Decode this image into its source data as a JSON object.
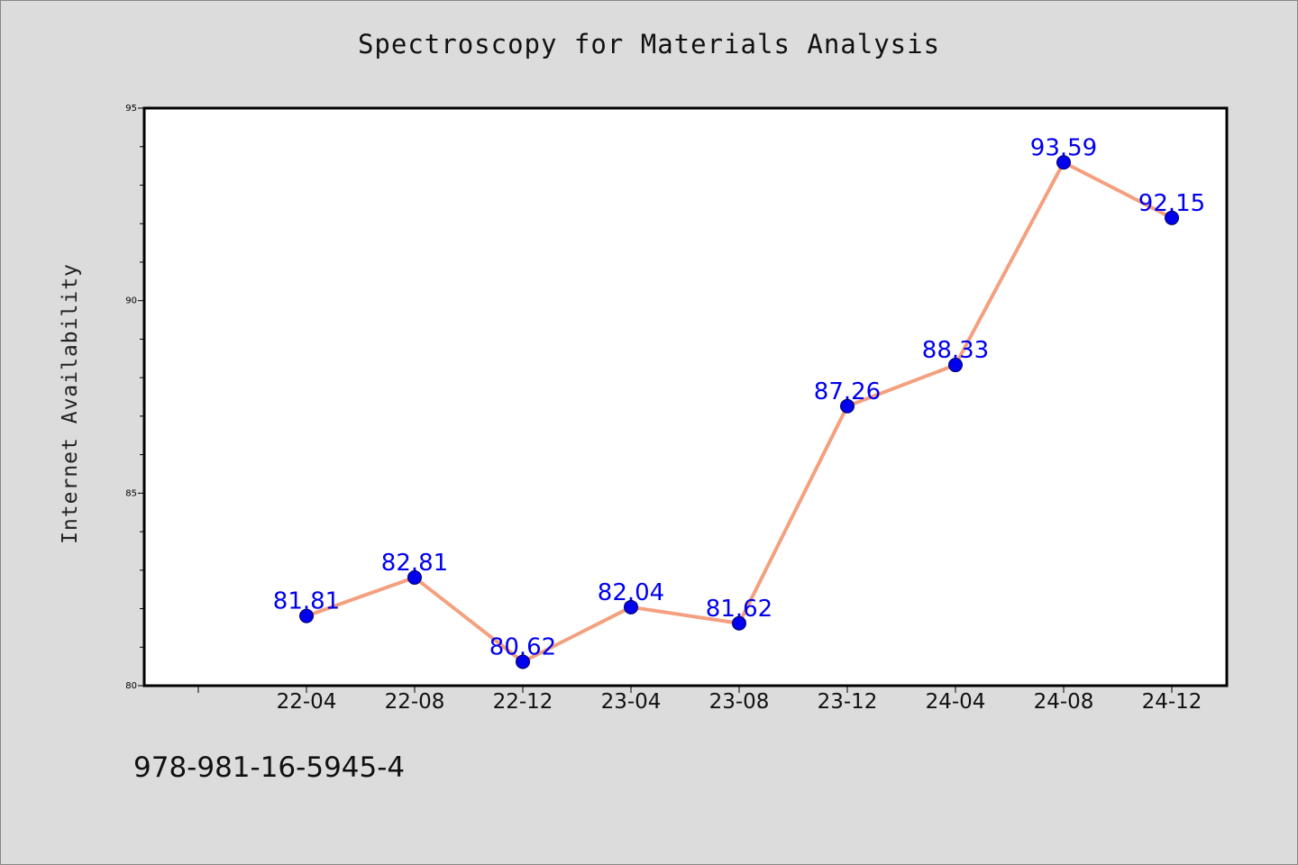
{
  "chart_data": {
    "type": "line",
    "title": "Spectroscopy for Materials Analysis",
    "xlabel": "",
    "ylabel": "Internet Availability",
    "categories": [
      "22-04",
      "22-08",
      "22-12",
      "23-04",
      "23-08",
      "23-12",
      "24-04",
      "24-08",
      "24-12"
    ],
    "series": [
      {
        "values": [
          81.81,
          82.81,
          80.62,
          82.04,
          81.62,
          87.26,
          88.33,
          93.59,
          92.15
        ],
        "labels": [
          "81.81",
          "82.81",
          "80.62",
          "82.04",
          "81.62",
          "87.26",
          "88.33",
          "93.59",
          "92.15"
        ]
      }
    ],
    "ylim": [
      80,
      95
    ],
    "yticks": [
      80,
      85,
      90,
      95
    ],
    "ytick_labels": [
      "80",
      "85",
      "90",
      "95"
    ],
    "grid": false,
    "legend": "none",
    "colors": {
      "line": "#f4a07e",
      "marker": "#0000ee",
      "data_label": "#0000ee",
      "plot_bg": "#ffffff",
      "page_bg": "#dcdcdc",
      "axis": "#000000"
    }
  },
  "footer": {
    "code": "978-981-16-5945-4"
  }
}
